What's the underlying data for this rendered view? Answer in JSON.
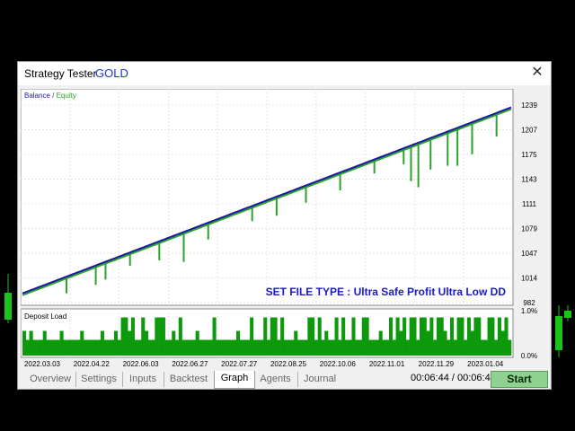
{
  "window": {
    "title": "Strategy Tester",
    "symbol": "GOLD",
    "close_glyph": "✕"
  },
  "chart_data": [
    {
      "type": "line",
      "legend": [
        "Balance",
        "Equity"
      ],
      "legend_separator": " / ",
      "legend_placement": "top-left",
      "colors": {
        "Balance": "#1a1aa0",
        "Equity": "#2ba32b"
      },
      "annotation": "SET FILE TYPE : Ultra Safe Profit Ultra Low DD",
      "annotation_color": "#1a1acc",
      "ylim": [
        982,
        1239
      ],
      "y_ticks": [
        "1239",
        "1207",
        "1175",
        "1143",
        "1111",
        "1079",
        "1047",
        "1014",
        "982"
      ],
      "balance_start": 994,
      "balance_end": 1236,
      "equity_dips": [
        {
          "t": 0.09,
          "low": 994
        },
        {
          "t": 0.15,
          "low": 1005
        },
        {
          "t": 0.17,
          "low": 1012
        },
        {
          "t": 0.22,
          "low": 1030
        },
        {
          "t": 0.28,
          "low": 1037
        },
        {
          "t": 0.33,
          "low": 1035
        },
        {
          "t": 0.38,
          "low": 1064
        },
        {
          "t": 0.47,
          "low": 1088
        },
        {
          "t": 0.52,
          "low": 1095
        },
        {
          "t": 0.58,
          "low": 1112
        },
        {
          "t": 0.65,
          "low": 1128
        },
        {
          "t": 0.72,
          "low": 1150
        },
        {
          "t": 0.78,
          "low": 1162
        },
        {
          "t": 0.795,
          "low": 1140
        },
        {
          "t": 0.81,
          "low": 1132
        },
        {
          "t": 0.835,
          "low": 1155
        },
        {
          "t": 0.87,
          "low": 1160
        },
        {
          "t": 0.89,
          "low": 1160
        },
        {
          "t": 0.92,
          "low": 1175
        },
        {
          "t": 0.97,
          "low": 1198
        }
      ]
    },
    {
      "type": "bar",
      "title": "Deposit Load",
      "color": "#0c9a0c",
      "ylim": [
        0,
        1
      ],
      "y_ticks": [
        "1.0%",
        "0.0%"
      ],
      "x_ticks": [
        "2022.03.03",
        "2022.04.22",
        "2022.06.03",
        "2022.06.27",
        "2022.07.27",
        "2022.08.25",
        "2022.10.06",
        "2022.11.01",
        "2022.11.29",
        "2023.01.04"
      ],
      "values": [
        0.55,
        0.35,
        0.55,
        0.35,
        0.35,
        0.35,
        0.55,
        0.35,
        0.35,
        0.35,
        0.35,
        0.55,
        0.35,
        0.35,
        0.35,
        0.35,
        0.35,
        0.55,
        0.35,
        0.35,
        0.35,
        0.35,
        0.35,
        0.55,
        0.35,
        0.35,
        0.35,
        0.55,
        0.35,
        0.85,
        0.85,
        0.55,
        0.85,
        0.35,
        0.35,
        0.85,
        0.55,
        0.35,
        0.35,
        0.85,
        0.85,
        0.85,
        0.35,
        0.35,
        0.55,
        0.35,
        0.85,
        0.35,
        0.35,
        0.35,
        0.35,
        0.55,
        0.35,
        0.35,
        0.35,
        0.35,
        0.85,
        0.35,
        0.35,
        0.35,
        0.35,
        0.35,
        0.35,
        0.55,
        0.35,
        0.35,
        0.35,
        0.85,
        0.35,
        0.35,
        0.35,
        0.85,
        0.35,
        0.85,
        0.85,
        0.35,
        0.85,
        0.35,
        0.35,
        0.35,
        0.55,
        0.35,
        0.35,
        0.35,
        0.85,
        0.85,
        0.35,
        0.85,
        0.35,
        0.55,
        0.35,
        0.35,
        0.85,
        0.35,
        0.85,
        0.35,
        0.35,
        0.85,
        0.35,
        0.35,
        0.85,
        0.85,
        0.35,
        0.35,
        0.35,
        0.55,
        0.35,
        0.35,
        0.85,
        0.35,
        0.85,
        0.55,
        0.85,
        0.35,
        0.85,
        0.85,
        0.35,
        0.85,
        0.85,
        0.55,
        0.85,
        0.35,
        0.85,
        0.85,
        0.55,
        0.35,
        0.85,
        0.35,
        0.85,
        0.85,
        0.35,
        0.85,
        0.55,
        0.85,
        0.85,
        0.35,
        0.35,
        0.85,
        0.85,
        0.35,
        0.85,
        0.55,
        0.85,
        0.35
      ]
    }
  ],
  "tabs": [
    {
      "label": "Overview"
    },
    {
      "label": "Settings"
    },
    {
      "label": "Inputs"
    },
    {
      "label": "Backtest"
    },
    {
      "label": "Graph",
      "active": true
    },
    {
      "label": "Agents"
    },
    {
      "label": "Journal"
    }
  ],
  "timer": "00:06:44 / 00:06:44",
  "start_label": "Start"
}
